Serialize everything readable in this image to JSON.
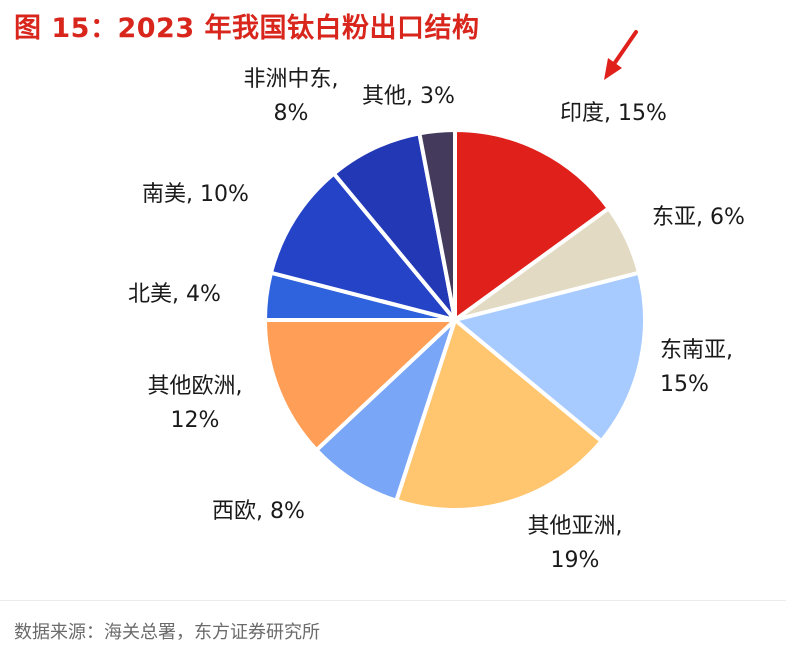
{
  "title": "图 15：2023 年我国钛白粉出口结构",
  "source": "数据来源：海关总署，东方证券研究所",
  "chart_data": {
    "type": "pie",
    "start_angle_deg": 0,
    "direction": "clockwise",
    "slices": [
      {
        "label": "印度",
        "value": 15,
        "color": "#e0201b",
        "label_lines": [
          "印度, 15%"
        ]
      },
      {
        "label": "东亚",
        "value": 6,
        "color": "#e3dac3",
        "label_lines": [
          "东亚, 6%"
        ]
      },
      {
        "label": "东南亚",
        "value": 15,
        "color": "#a8cbff",
        "label_lines": [
          "东南亚,",
          "15%"
        ]
      },
      {
        "label": "其他亚洲",
        "value": 19,
        "color": "#ffc56f",
        "label_lines": [
          "其他亚洲,",
          "19%"
        ]
      },
      {
        "label": "西欧",
        "value": 8,
        "color": "#7aa6f7",
        "label_lines": [
          "西欧, 8%"
        ]
      },
      {
        "label": "其他欧洲",
        "value": 12,
        "color": "#ff9e57",
        "label_lines": [
          "其他欧洲,",
          "12%"
        ]
      },
      {
        "label": "北美",
        "value": 4,
        "color": "#2f62dd",
        "label_lines": [
          "北美, 4%"
        ]
      },
      {
        "label": "南美",
        "value": 10,
        "color": "#2443c7",
        "label_lines": [
          "南美, 10%"
        ]
      },
      {
        "label": "非洲中东",
        "value": 8,
        "color": "#2238b5",
        "label_lines": [
          "非洲中东,",
          "8%"
        ]
      },
      {
        "label": "其他",
        "value": 3,
        "color": "#443a5c",
        "label_lines": [
          "其他, 3%"
        ]
      }
    ],
    "annotation": {
      "type": "arrow",
      "color": "#e0201b",
      "points_to": "印度"
    }
  }
}
